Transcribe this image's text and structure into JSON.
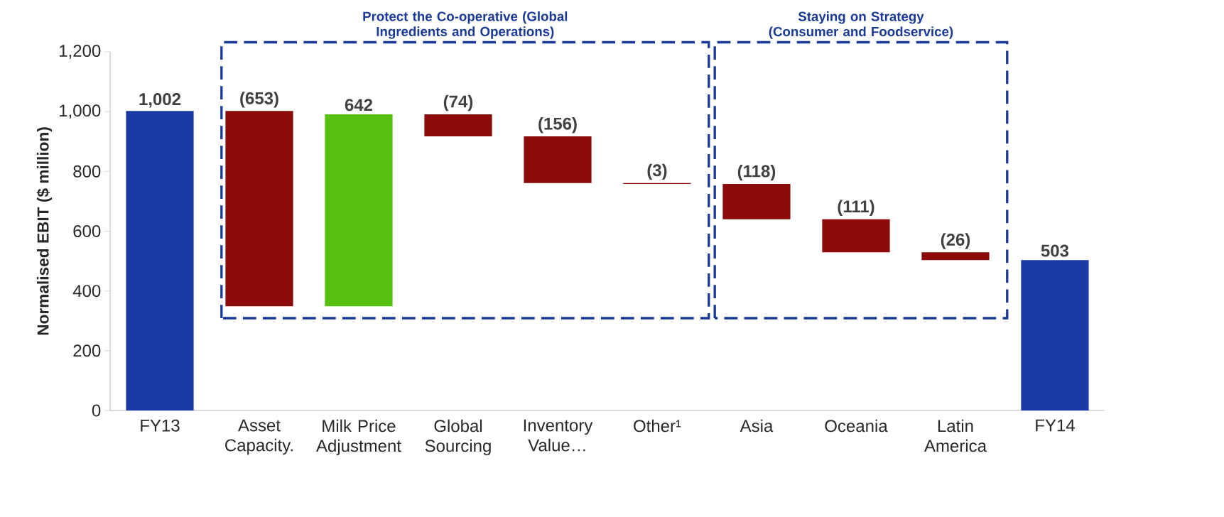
{
  "chart_data": {
    "type": "bar",
    "ylabel": "Normalised EBIT ($ million)",
    "categories": [
      "FY13",
      "Asset Capacity.",
      "Milk Price Adjustment",
      "Global Sourcing",
      "Inventory Value…",
      "Other¹",
      "Asia",
      "Oceania",
      "Latin America",
      "FY14"
    ],
    "values": [
      1002,
      -653,
      642,
      -74,
      -156,
      -3,
      -118,
      -111,
      -26,
      503
    ],
    "base": [
      0,
      1002,
      349,
      991,
      917,
      761,
      758,
      640,
      529,
      0
    ],
    "colors": [
      "#1a3aa6",
      "#8b0a0a",
      "#55c010",
      "#8b0a0a",
      "#8b0a0a",
      "#8b0a0a",
      "#8b0a0a",
      "#8b0a0a",
      "#8b0a0a",
      "#1a3aa6"
    ],
    "value_labels": [
      "1,002",
      "(653)",
      "642",
      "(74)",
      "(156)",
      "(3)",
      "(118)",
      "(111)",
      "(26)",
      "503"
    ],
    "ylim": [
      0,
      1200
    ],
    "yticks": [
      0,
      200,
      400,
      600,
      800,
      {
        "value": 1000,
        "label": "1,000"
      },
      {
        "value": 1200,
        "label": "1,200"
      }
    ],
    "annotations": [
      "Protect the Co-operative (Global Ingredients and Operations)",
      "Staying on Strategy (Consumer and Foodservice)"
    ]
  }
}
